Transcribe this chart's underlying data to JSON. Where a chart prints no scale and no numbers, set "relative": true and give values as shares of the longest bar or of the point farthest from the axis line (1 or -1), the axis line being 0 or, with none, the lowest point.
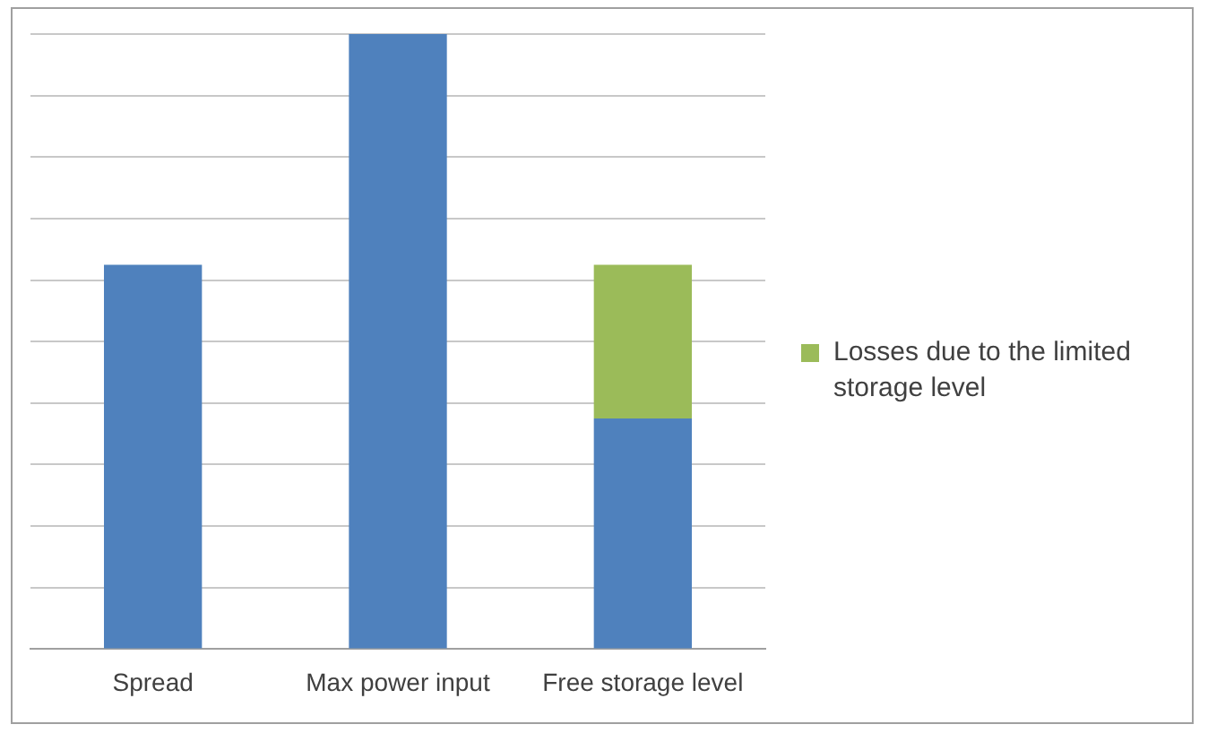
{
  "chart_data": {
    "type": "bar",
    "relative": true,
    "stacked": true,
    "grid": "y",
    "legend": "right",
    "categories": [
      "Spread",
      "Max power input",
      "Free storage level"
    ],
    "series": [
      {
        "color": "#4f81bd",
        "values": [
          0.625,
          1,
          0.375
        ]
      },
      {
        "name": "Losses due to the limited storage level",
        "color": "#9bbb59",
        "values": [
          0,
          0,
          0.25
        ]
      }
    ]
  }
}
